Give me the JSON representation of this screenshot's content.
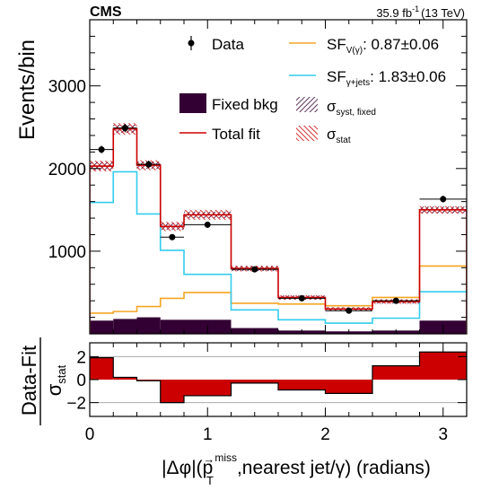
{
  "header": {
    "experiment": "CMS",
    "lumi_value": "35.9 fb",
    "lumi_exp": "-1",
    "energy": "(13 TeV)"
  },
  "axes": {
    "top_ylabel": "Events/bin",
    "bottom_ylabel_num": "Data-Fit",
    "bottom_ylabel_sigma": "σ",
    "bottom_ylabel_sub": "stat",
    "xlabel_prefix": "|Δφ|(",
    "xlabel_p": "p",
    "xlabel_arrow": "→",
    "xlabel_sup": "miss",
    "xlabel_sub": "T",
    "xlabel_suffix": ",nearest jet/γ) (radians)"
  },
  "legend": {
    "data": "Data",
    "fixed_bkg": "Fixed bkg",
    "total_fit": "Total fit",
    "sf_v": "SF",
    "sf_v_sub": "V(γ)",
    "sf_v_value": ":   0.87±0.06",
    "sf_gj": "SF",
    "sf_gj_sub": "γ+jets",
    "sf_gj_value": ": 1.83±0.06",
    "sigma_syst": "σ",
    "sigma_syst_sub": "syst, fixed",
    "sigma_stat": "σ",
    "sigma_stat_sub": "stat"
  },
  "colors": {
    "fixed_bkg": "#330033",
    "total_fit": "#cc0000",
    "sf_v": "#f5a623",
    "sf_gj": "#33ccee",
    "hatch_syst": "#330033",
    "hatch_stat": "#cc0000",
    "ratio_fill": "#cc0000",
    "ratio_ref_line": "#aaaaaa"
  },
  "chart_data": [
    {
      "type": "bar",
      "panel": "main",
      "bin_edges": [
        0,
        0.2,
        0.4,
        0.6,
        0.8,
        1.2,
        1.6,
        2.0,
        2.4,
        2.8,
        3.2
      ],
      "xlim": [
        0,
        3.2
      ],
      "ylim": [
        0,
        3800
      ],
      "xticks": [
        0,
        1,
        2,
        3
      ],
      "yticks": [
        1000,
        2000,
        3000
      ],
      "ylabel": "Events/bin",
      "series": [
        {
          "name": "Total fit",
          "kind": "step",
          "values": [
            2030,
            2480,
            2040,
            1300,
            1440,
            790,
            440,
            300,
            390,
            1500
          ]
        },
        {
          "name": "SF V(γ)",
          "kind": "step",
          "values": [
            250,
            270,
            330,
            430,
            500,
            370,
            360,
            340,
            440,
            820
          ]
        },
        {
          "name": "SF γ+jets",
          "kind": "step",
          "values": [
            1590,
            1960,
            1450,
            1010,
            720,
            290,
            170,
            130,
            190,
            510
          ]
        },
        {
          "name": "Fixed bkg",
          "kind": "filled",
          "values": [
            160,
            180,
            200,
            170,
            170,
            70,
            40,
            30,
            40,
            160
          ]
        },
        {
          "name": "σ syst, fixed",
          "kind": "band",
          "up": [
            50,
            50,
            45,
            40,
            40,
            30,
            25,
            20,
            25,
            40
          ]
        },
        {
          "name": "σ stat",
          "kind": "band",
          "up": [
            65,
            70,
            60,
            55,
            60,
            35,
            28,
            22,
            28,
            45
          ]
        },
        {
          "name": "Data",
          "kind": "points",
          "x": [
            0.1,
            0.3,
            0.5,
            0.7,
            1.0,
            1.4,
            1.8,
            2.2,
            2.6,
            3.0
          ],
          "values": [
            2230,
            2490,
            2050,
            1170,
            1320,
            780,
            430,
            280,
            400,
            1630
          ],
          "err": [
            45,
            50,
            45,
            35,
            36,
            28,
            21,
            17,
            20,
            40
          ]
        }
      ]
    },
    {
      "type": "bar",
      "panel": "ratio",
      "bin_edges": [
        0,
        0.2,
        0.4,
        0.6,
        0.8,
        1.2,
        1.6,
        2.0,
        2.4,
        2.8,
        3.2
      ],
      "xlim": [
        0,
        3.2
      ],
      "ylim": [
        -3.2,
        3.2
      ],
      "xticks": [
        0,
        1,
        2,
        3
      ],
      "yticks": [
        -2,
        0,
        2
      ],
      "reference_lines": [
        -2,
        2
      ],
      "values": [
        1.9,
        0.2,
        -0.1,
        -2.0,
        -1.4,
        -0.3,
        -0.9,
        -1.2,
        1.2,
        2.4
      ]
    }
  ]
}
